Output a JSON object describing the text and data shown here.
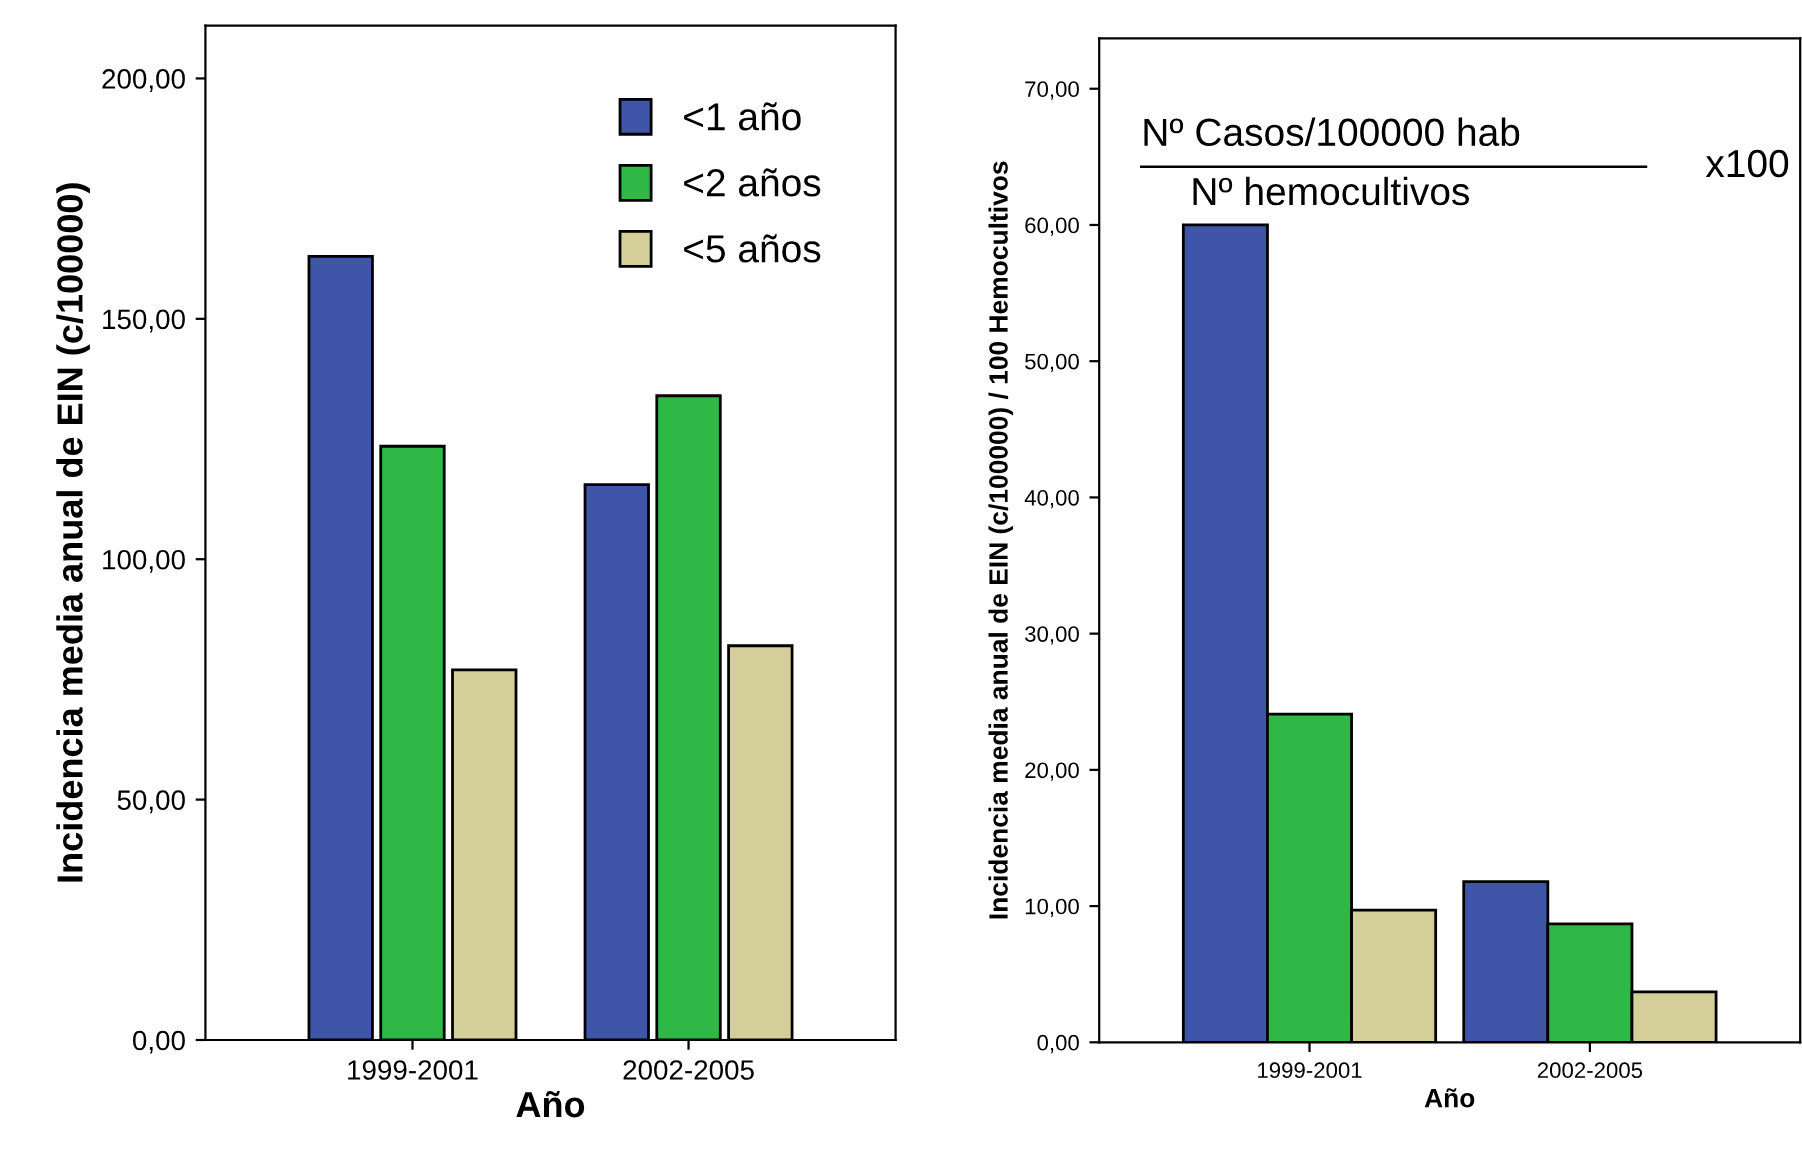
{
  "chart_data": [
    {
      "type": "bar",
      "categories": [
        "1999-2001",
        "2002-2005"
      ],
      "xlabel": "Año",
      "ylabel": "Incidencia media anual de EIN (c/100000)",
      "ylim": [
        0,
        211
      ],
      "yticks": [
        {
          "value": 0,
          "label": "0,00"
        },
        {
          "value": 50,
          "label": "50,00"
        },
        {
          "value": 100,
          "label": "100,00"
        },
        {
          "value": 150,
          "label": "150,00"
        },
        {
          "value": 200,
          "label": "200,00"
        }
      ],
      "grid": false,
      "legend": "top right",
      "series": [
        {
          "name": "<1 año",
          "color": "#3f56a8",
          "values": [
            163,
            115.5
          ]
        },
        {
          "name": "<2 años",
          "color": "#30b847",
          "values": [
            123.5,
            134
          ]
        },
        {
          "name": "<5 años",
          "color": "#d4cf98",
          "values": [
            77,
            82
          ]
        }
      ]
    },
    {
      "type": "bar",
      "categories": [
        "1999-2001",
        "2002-2005"
      ],
      "xlabel": "Año",
      "ylabel": "Incidencia media anual de EIN (c/100000) / 100 Hemocultivos",
      "ylim": [
        0,
        73.7
      ],
      "yticks": [
        {
          "value": 0,
          "label": "0,00"
        },
        {
          "value": 10,
          "label": "10,00"
        },
        {
          "value": 20,
          "label": "20,00"
        },
        {
          "value": 30,
          "label": "30,00"
        },
        {
          "value": 40,
          "label": "40,00"
        },
        {
          "value": 50,
          "label": "50,00"
        },
        {
          "value": 60,
          "label": "60,00"
        },
        {
          "value": 70,
          "label": "70,00"
        }
      ],
      "grid": false,
      "legend": false,
      "annotations": [
        "Nº Casos/100000 hab",
        "Nº hemocultivos",
        "x100"
      ],
      "series": [
        {
          "color": "#3f56a8",
          "values": [
            60,
            11.8
          ]
        },
        {
          "color": "#30b847",
          "values": [
            24.1,
            8.7
          ]
        },
        {
          "color": "#d4cf98",
          "values": [
            9.7,
            3.7
          ]
        }
      ]
    }
  ]
}
